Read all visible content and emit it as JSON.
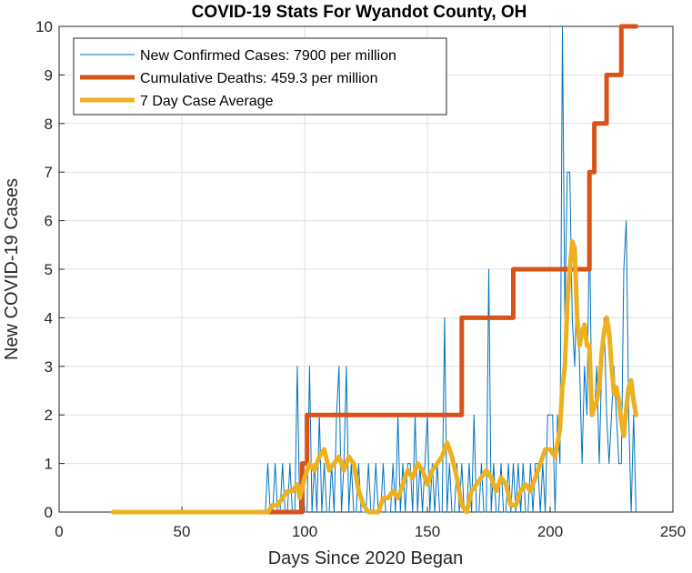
{
  "chart_data": {
    "type": "line",
    "title": "COVID-19 Stats For Wyandot County, OH",
    "xlabel": "Days Since 2020 Began",
    "ylabel": "New COVID-19 Cases",
    "xlim": [
      0,
      250
    ],
    "ylim": [
      0,
      10
    ],
    "xticks": [
      0,
      50,
      100,
      150,
      200,
      250
    ],
    "yticks": [
      0,
      1,
      2,
      3,
      4,
      5,
      6,
      7,
      8,
      9,
      10
    ],
    "grid": true,
    "legend_position": "top-left",
    "series": [
      {
        "name": "New Confirmed Cases: 7900 per million",
        "color": "#0072BD",
        "style": "thin",
        "x": [
          22,
          40,
          60,
          80,
          84,
          85,
          86,
          87,
          88,
          89,
          90,
          91,
          92,
          93,
          94,
          95,
          96,
          97,
          98,
          99,
          100,
          101,
          102,
          103,
          104,
          105,
          106,
          107,
          108,
          109,
          110,
          111,
          112,
          113,
          114,
          115,
          116,
          117,
          118,
          119,
          120,
          121,
          122,
          123,
          124,
          125,
          126,
          127,
          128,
          129,
          130,
          131,
          132,
          133,
          134,
          135,
          136,
          137,
          138,
          139,
          140,
          141,
          142,
          143,
          144,
          145,
          146,
          147,
          148,
          149,
          150,
          151,
          152,
          153,
          154,
          155,
          156,
          157,
          158,
          159,
          160,
          161,
          162,
          163,
          164,
          165,
          166,
          167,
          168,
          169,
          170,
          171,
          172,
          173,
          174,
          175,
          176,
          177,
          178,
          179,
          180,
          181,
          182,
          183,
          184,
          185,
          186,
          187,
          188,
          189,
          190,
          191,
          192,
          193,
          194,
          195,
          196,
          197,
          198,
          199,
          200,
          201,
          202,
          203,
          204,
          205,
          206,
          207,
          208,
          209,
          210,
          211,
          212,
          213,
          214,
          215,
          216,
          217,
          218,
          219,
          220,
          221,
          222,
          223,
          224,
          225,
          226,
          227,
          228,
          229,
          230,
          231,
          232,
          233,
          234,
          235
        ],
        "y": [
          0,
          0,
          0,
          0,
          0,
          1,
          0,
          0,
          1,
          0,
          0,
          1,
          0,
          0,
          1,
          0,
          0,
          3,
          0,
          1,
          0,
          0,
          3,
          0,
          1,
          0,
          2,
          0,
          1,
          0,
          0,
          1,
          0,
          2,
          3,
          0,
          1,
          3,
          0,
          1,
          0,
          0,
          1,
          0,
          0,
          0,
          1,
          0,
          0,
          1,
          0,
          0,
          1,
          0,
          0,
          0,
          1,
          0,
          2,
          0,
          1,
          0,
          1,
          1,
          0,
          2,
          0,
          1,
          0,
          1,
          2,
          0,
          1,
          0,
          1,
          0,
          0,
          4,
          0,
          1,
          0,
          0,
          1,
          0,
          1,
          0,
          0,
          1,
          0,
          2,
          0,
          0,
          1,
          0,
          0,
          5,
          0,
          1,
          0,
          0,
          1,
          0,
          0,
          1,
          0,
          1,
          0,
          1,
          0,
          1,
          0,
          0,
          1,
          0,
          1,
          1,
          0,
          1,
          0,
          2,
          2,
          2,
          0,
          2,
          1,
          10,
          4,
          7,
          7,
          4,
          3,
          5,
          3,
          1,
          3,
          2,
          6,
          2,
          2,
          3,
          1,
          3,
          4,
          2,
          1,
          2,
          3,
          2,
          1,
          1,
          5,
          6,
          2,
          0,
          2,
          0
        ]
      },
      {
        "name": "Cumulative Deaths: 459.3 per million",
        "color": "#D95319",
        "style": "thick",
        "x": [
          22,
          99,
          99,
          101,
          101,
          164,
          164,
          185,
          185,
          216,
          216,
          218,
          218,
          223,
          223,
          229,
          229,
          235
        ],
        "y": [
          0,
          0,
          1,
          1,
          2,
          2,
          4,
          4,
          5,
          5,
          7,
          7,
          8,
          8,
          9,
          9,
          10,
          10
        ]
      },
      {
        "name": "7 Day Case Average",
        "color": "#EDB120",
        "style": "thick",
        "x": [
          22,
          40,
          60,
          80,
          85,
          87,
          89,
          91,
          93,
          95,
          97,
          98,
          100,
          102,
          104,
          106,
          108,
          110,
          112,
          114,
          116,
          118,
          120,
          122,
          124,
          126,
          128,
          130,
          132,
          134,
          136,
          138,
          140,
          142,
          144,
          146,
          148,
          150,
          152,
          154,
          156,
          158,
          160,
          162,
          164,
          166,
          168,
          170,
          172,
          174,
          176,
          178,
          180,
          182,
          184,
          186,
          188,
          190,
          192,
          194,
          196,
          198,
          200,
          202,
          204,
          205,
          206,
          207,
          208,
          209,
          210,
          211,
          212,
          213,
          214,
          215,
          216,
          217,
          218,
          219,
          220,
          221,
          222,
          223,
          224,
          225,
          226,
          227,
          228,
          229,
          230,
          231,
          232,
          233,
          234,
          235
        ],
        "y": [
          0,
          0,
          0,
          0,
          0,
          0.14,
          0.14,
          0.29,
          0.43,
          0.43,
          0.57,
          0.29,
          0.71,
          1.0,
          0.86,
          1.14,
          1.29,
          0.86,
          1.0,
          1.14,
          0.86,
          1.14,
          1.0,
          0.43,
          0.14,
          0.0,
          0.0,
          0.0,
          0.29,
          0.29,
          0.43,
          0.29,
          0.57,
          0.86,
          0.71,
          1.0,
          0.86,
          0.57,
          0.86,
          1.0,
          1.14,
          1.43,
          1.14,
          0.71,
          0.14,
          0.0,
          0.43,
          0.57,
          0.71,
          0.86,
          0.71,
          0.43,
          0.71,
          0.57,
          0.14,
          0.14,
          0.43,
          0.57,
          0.43,
          0.71,
          1.0,
          1.29,
          1.29,
          1.14,
          1.71,
          2.57,
          3.0,
          4.29,
          5.0,
          5.57,
          5.43,
          4.0,
          3.43,
          3.71,
          3.86,
          3.43,
          3.43,
          2.0,
          2.14,
          2.29,
          2.57,
          3.29,
          3.71,
          4.0,
          3.71,
          3.0,
          2.43,
          2.57,
          2.29,
          1.86,
          1.57,
          2.14,
          2.57,
          2.71,
          2.29,
          2.0
        ]
      }
    ]
  }
}
